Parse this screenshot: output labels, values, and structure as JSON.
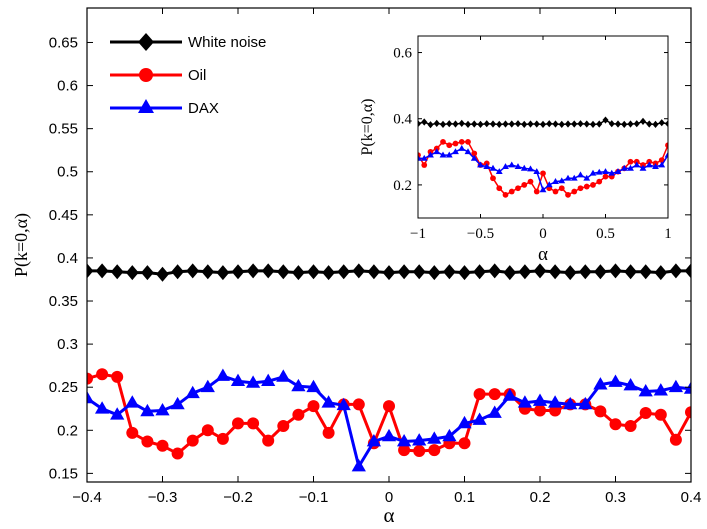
{
  "chart_data": [
    {
      "type": "line",
      "xlabel": "α",
      "ylabel": "P(k=0,α)",
      "xlim": [
        -0.4,
        0.4
      ],
      "ylim": [
        0.14,
        0.69
      ],
      "xticks": [
        "−0.4",
        "−0.3",
        "−0.2",
        "−0.1",
        "0",
        "0.1",
        "0.2",
        "0.3",
        "0.4"
      ],
      "yticks": [
        "0.15",
        "0.2",
        "0.25",
        "0.3",
        "0.35",
        "0.4",
        "0.45",
        "0.5",
        "0.55",
        "0.6",
        "0.65"
      ],
      "grid": false,
      "legend_position": "top-left",
      "x": [
        -0.4,
        -0.38,
        -0.36,
        -0.34,
        -0.32,
        -0.3,
        -0.28,
        -0.26,
        -0.24,
        -0.22,
        -0.2,
        -0.18,
        -0.16,
        -0.14,
        -0.12,
        -0.1,
        -0.08,
        -0.06,
        -0.04,
        -0.02,
        0,
        0.02,
        0.04,
        0.06,
        0.08,
        0.1,
        0.12,
        0.14,
        0.16,
        0.18,
        0.2,
        0.22,
        0.24,
        0.26,
        0.28,
        0.3,
        0.32,
        0.34,
        0.36,
        0.38,
        0.4
      ],
      "series": [
        {
          "name": "White noise",
          "color": "#000000",
          "marker": "diamond",
          "values": [
            0.385,
            0.385,
            0.384,
            0.383,
            0.383,
            0.381,
            0.384,
            0.385,
            0.384,
            0.383,
            0.384,
            0.385,
            0.385,
            0.384,
            0.383,
            0.384,
            0.383,
            0.384,
            0.385,
            0.384,
            0.383,
            0.384,
            0.384,
            0.383,
            0.384,
            0.383,
            0.384,
            0.385,
            0.383,
            0.384,
            0.385,
            0.384,
            0.383,
            0.384,
            0.384,
            0.385,
            0.384,
            0.384,
            0.383,
            0.385,
            0.385
          ]
        },
        {
          "name": "Oil",
          "color": "#ff0000",
          "marker": "circle",
          "values": [
            0.26,
            0.265,
            0.262,
            0.197,
            0.187,
            0.182,
            0.173,
            0.188,
            0.2,
            0.19,
            0.208,
            0.208,
            0.188,
            0.205,
            0.218,
            0.228,
            0.197,
            0.23,
            0.23,
            0.185,
            0.228,
            0.177,
            0.176,
            0.177,
            0.185,
            0.185,
            0.242,
            0.242,
            0.242,
            0.225,
            0.223,
            0.223,
            0.23,
            0.23,
            0.222,
            0.207,
            0.205,
            0.22,
            0.218,
            0.189,
            0.221
          ]
        },
        {
          "name": "DAX",
          "color": "#0000ff",
          "marker": "triangle",
          "values": [
            0.237,
            0.225,
            0.218,
            0.232,
            0.222,
            0.223,
            0.23,
            0.243,
            0.25,
            0.263,
            0.257,
            0.255,
            0.257,
            0.262,
            0.251,
            0.25,
            0.232,
            0.229,
            0.158,
            0.187,
            0.193,
            0.187,
            0.188,
            0.19,
            0.193,
            0.208,
            0.212,
            0.22,
            0.24,
            0.232,
            0.234,
            0.232,
            0.23,
            0.23,
            0.253,
            0.256,
            0.252,
            0.245,
            0.246,
            0.25,
            0.248
          ]
        }
      ]
    },
    {
      "type": "line",
      "inset": true,
      "xlabel": "α",
      "ylabel": "P(k=0,α)",
      "xlim": [
        -1,
        1
      ],
      "ylim": [
        0.1,
        0.65
      ],
      "xticks": [
        "−1",
        "−0.5",
        "0",
        "0.5",
        "1"
      ],
      "yticks": [
        "0.2",
        "0.4",
        "0.6"
      ],
      "grid": false,
      "x": [
        -1,
        -0.95,
        -0.9,
        -0.85,
        -0.8,
        -0.75,
        -0.7,
        -0.65,
        -0.6,
        -0.55,
        -0.5,
        -0.45,
        -0.4,
        -0.35,
        -0.3,
        -0.25,
        -0.2,
        -0.15,
        -0.1,
        -0.05,
        0,
        0.05,
        0.1,
        0.15,
        0.2,
        0.25,
        0.3,
        0.35,
        0.4,
        0.45,
        0.5,
        0.55,
        0.6,
        0.65,
        0.7,
        0.75,
        0.8,
        0.85,
        0.9,
        0.95,
        1
      ],
      "series": [
        {
          "name": "White noise",
          "color": "#000000",
          "marker": "diamond",
          "values": [
            0.385,
            0.39,
            0.382,
            0.386,
            0.383,
            0.385,
            0.384,
            0.386,
            0.383,
            0.384,
            0.383,
            0.385,
            0.384,
            0.383,
            0.384,
            0.384,
            0.385,
            0.383,
            0.384,
            0.384,
            0.383,
            0.385,
            0.384,
            0.383,
            0.384,
            0.384,
            0.385,
            0.384,
            0.383,
            0.384,
            0.396,
            0.385,
            0.384,
            0.383,
            0.384,
            0.385,
            0.392,
            0.384,
            0.383,
            0.388,
            0.385
          ]
        },
        {
          "name": "Oil",
          "color": "#ff0000",
          "marker": "circle",
          "values": [
            0.29,
            0.26,
            0.3,
            0.31,
            0.33,
            0.32,
            0.325,
            0.33,
            0.33,
            0.295,
            0.26,
            0.265,
            0.22,
            0.19,
            0.17,
            0.18,
            0.19,
            0.2,
            0.21,
            0.18,
            0.235,
            0.19,
            0.18,
            0.19,
            0.17,
            0.18,
            0.19,
            0.195,
            0.2,
            0.21,
            0.225,
            0.225,
            0.24,
            0.25,
            0.27,
            0.27,
            0.26,
            0.27,
            0.265,
            0.275,
            0.32
          ]
        },
        {
          "name": "DAX",
          "color": "#0000ff",
          "marker": "triangle",
          "values": [
            0.28,
            0.28,
            0.29,
            0.3,
            0.29,
            0.29,
            0.3,
            0.31,
            0.3,
            0.28,
            0.26,
            0.255,
            0.25,
            0.24,
            0.255,
            0.26,
            0.255,
            0.25,
            0.248,
            0.24,
            0.185,
            0.2,
            0.21,
            0.212,
            0.22,
            0.22,
            0.23,
            0.22,
            0.235,
            0.238,
            0.24,
            0.235,
            0.24,
            0.25,
            0.25,
            0.26,
            0.25,
            0.26,
            0.255,
            0.26,
            0.29
          ]
        }
      ]
    }
  ]
}
